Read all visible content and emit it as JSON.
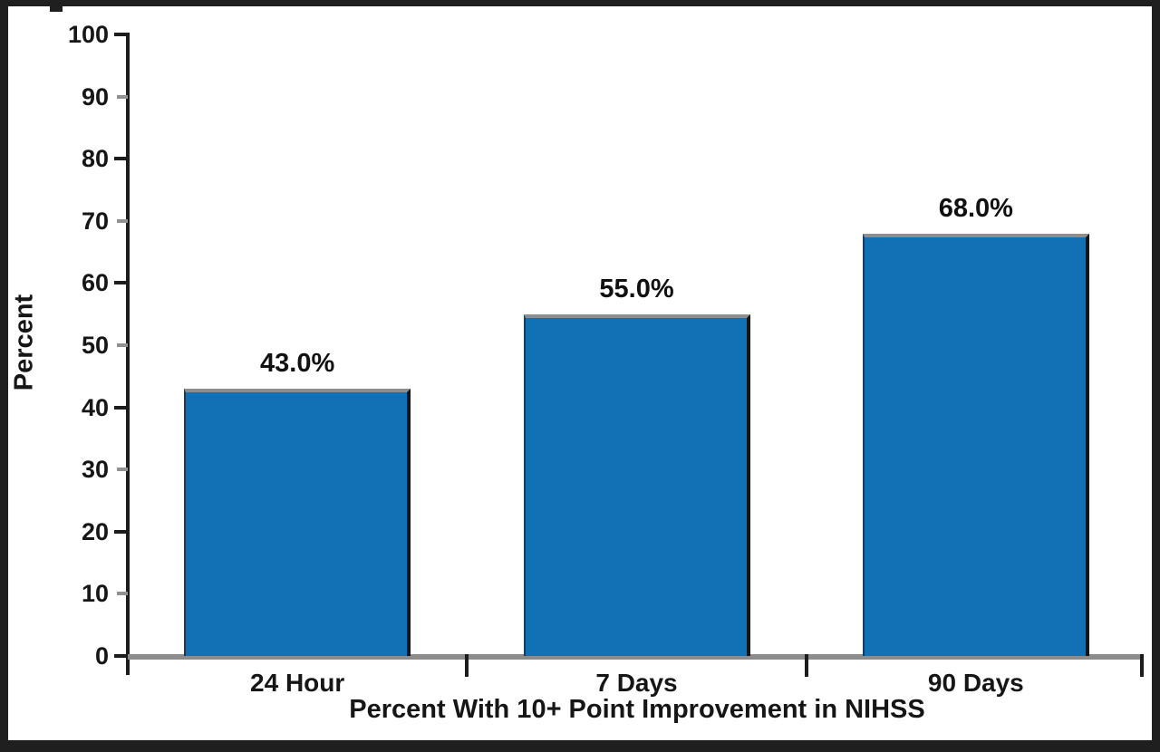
{
  "chart_data": {
    "type": "bar",
    "categories": [
      "24 Hour",
      "7 Days",
      "90 Days"
    ],
    "values": [
      43.0,
      55.0,
      68.0
    ],
    "bar_labels": [
      "43.0%",
      "55.0%",
      "68.0%"
    ],
    "xlabel": "Percent With 10+ Point Improvement in NIHSS",
    "ylabel": "Percent",
    "ylim": [
      0,
      100
    ],
    "yticks": [
      0,
      10,
      20,
      30,
      40,
      50,
      60,
      70,
      80,
      90,
      100
    ],
    "grid": false,
    "legend": false,
    "bar_color": "#1171b4",
    "axis_line_color": "#1c1c1c",
    "baseline_color": "#8c8c8c",
    "text_color": "#161616",
    "frame_color": "#1f1f1f"
  }
}
